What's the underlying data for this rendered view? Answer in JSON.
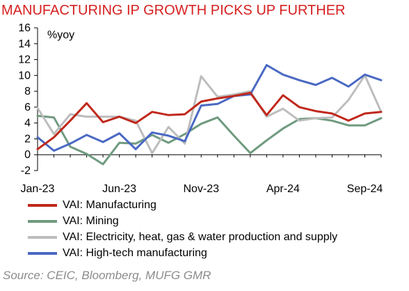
{
  "title": "MANUFACTURING IP GROWTH PICKS UP FURTHER",
  "source": "Source: CEIC, Bloomberg, MUFG GMR",
  "chart_data": {
    "type": "line",
    "unit_label": "%yoy",
    "ylim": [
      -2,
      16
    ],
    "yticks": [
      -2,
      0,
      2,
      4,
      6,
      8,
      10,
      12,
      14,
      16
    ],
    "x": [
      "Jan-23",
      "Feb-23",
      "Mar-23",
      "Apr-23",
      "May-23",
      "Jun-23",
      "Jul-23",
      "Aug-23",
      "Sep-23",
      "Oct-23",
      "Nov-23",
      "Dec-23",
      "Jan-24",
      "Feb-24",
      "Mar-24",
      "Apr-24",
      "May-24",
      "Jun-24",
      "Jul-24",
      "Aug-24",
      "Sep-24",
      "Oct-24"
    ],
    "xtick_labels": [
      "Jan-23",
      "Jun-23",
      "Nov-23",
      "Apr-24",
      "Sep-24"
    ],
    "xtick_index": [
      0,
      5,
      10,
      15,
      20
    ],
    "grid": false,
    "series": [
      {
        "name": "VAI: Manufacturing",
        "color": "#c0281c",
        "values": [
          0.7,
          2.2,
          4.3,
          6.5,
          4.1,
          4.8,
          4.0,
          5.4,
          5.0,
          5.1,
          6.7,
          7.1,
          7.4,
          7.8,
          5.0,
          7.5,
          6.0,
          5.5,
          5.2,
          4.3,
          5.2,
          5.4
        ]
      },
      {
        "name": "VAI: Mining",
        "color": "#6f9a7f",
        "values": [
          4.9,
          4.7,
          1.0,
          0.1,
          -1.2,
          1.5,
          1.4,
          2.5,
          1.5,
          2.6,
          3.9,
          4.7,
          2.4,
          0.2,
          1.8,
          3.3,
          4.5,
          4.6,
          4.3,
          3.7,
          3.7,
          4.6
        ]
      },
      {
        "name": "VAI: Electricity, heat, gas & water production and supply",
        "color": "#bdbdbd",
        "values": [
          5.9,
          2.6,
          5.1,
          4.8,
          4.8,
          4.8,
          4.3,
          0.2,
          3.5,
          1.4,
          9.9,
          7.3,
          7.6,
          8.0,
          4.8,
          5.8,
          4.3,
          4.6,
          4.7,
          6.9,
          10.0,
          5.4
        ]
      },
      {
        "name": "VAI: High-tech manufacturing",
        "color": "#4a69c3",
        "values": [
          2.2,
          0.5,
          1.4,
          2.5,
          1.6,
          2.7,
          0.7,
          2.8,
          2.4,
          1.7,
          6.2,
          6.4,
          7.4,
          7.6,
          11.3,
          10.1,
          9.4,
          8.8,
          9.7,
          8.6,
          10.1,
          9.4
        ]
      }
    ]
  }
}
